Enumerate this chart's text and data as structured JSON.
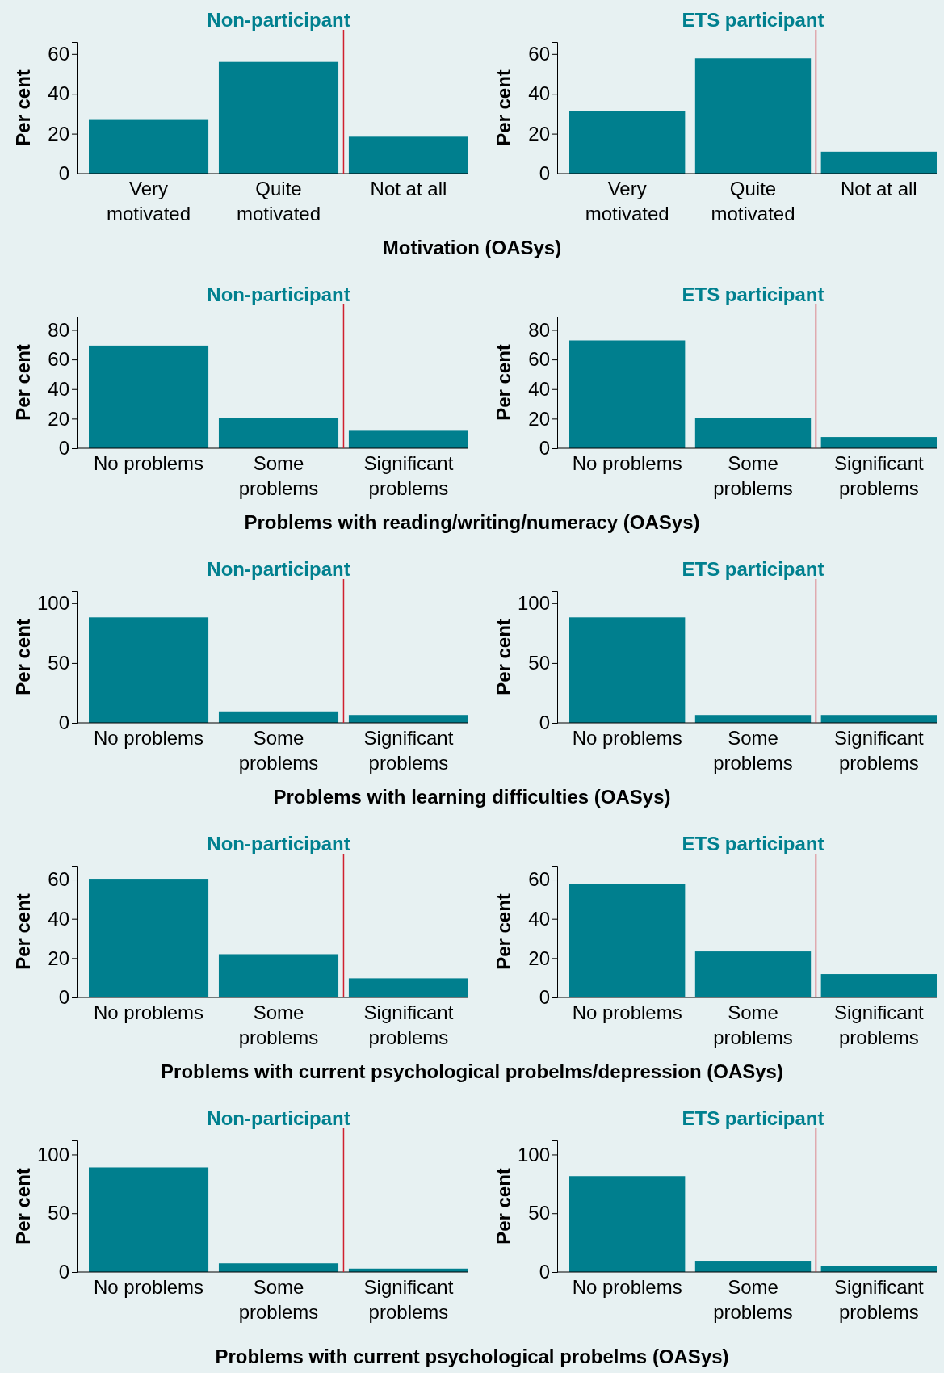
{
  "chart_data": [
    {
      "type": "bar",
      "title": "Non-participant",
      "ylabel": "Per cent",
      "xlabel": "Motivation (OASys)",
      "categories": [
        "Very motivated",
        "Quite motivated",
        "Not at all"
      ],
      "values": [
        27.3,
        56,
        18.5
      ],
      "color": "#007f8e",
      "ylim": [
        0,
        66
      ],
      "yticks": [
        0,
        20,
        40,
        60
      ],
      "ref_lines": [
        {
          "axis": "x",
          "value": "Not at all",
          "color": "#d0202e"
        }
      ]
    },
    {
      "type": "bar",
      "title": "ETS participant",
      "ylabel": "Per cent",
      "categories": [
        "Very motivated",
        "Quite motivated",
        "Not at all"
      ],
      "values": [
        31.3,
        57.8,
        11
      ],
      "color": "#007f8e",
      "ylim": [
        0,
        66
      ],
      "yticks": [
        0,
        20,
        40,
        60
      ],
      "ref_lines": [
        {
          "axis": "x",
          "value": "Not at all",
          "color": "#d0202e"
        }
      ]
    },
    {
      "type": "bar",
      "title": "Non-participant",
      "ylabel": "Per cent",
      "xlabel": "Problems with reading/writing/numeracy (OASys)",
      "categories": [
        "No problems",
        "Some problems",
        "Significant problems"
      ],
      "values": [
        69.4,
        20.6,
        11.8
      ],
      "color": "#007f8e",
      "ylim": [
        0,
        89
      ],
      "yticks": [
        0,
        20,
        40,
        60,
        80
      ],
      "ref_lines": [
        {
          "axis": "x",
          "value": "Significant problems",
          "color": "#d0202e"
        }
      ]
    },
    {
      "type": "bar",
      "title": "ETS participant",
      "ylabel": "Per cent",
      "categories": [
        "No problems",
        "Some problems",
        "Significant problems"
      ],
      "values": [
        72.9,
        20.6,
        7.6
      ],
      "color": "#007f8e",
      "ylim": [
        0,
        89
      ],
      "yticks": [
        0,
        20,
        40,
        60,
        80
      ],
      "ref_lines": [
        {
          "axis": "x",
          "value": "Significant problems",
          "color": "#d0202e"
        }
      ]
    },
    {
      "type": "bar",
      "title": "Non-participant",
      "ylabel": "Per cent",
      "xlabel": "Problems with learning difficulties (OASys)",
      "categories": [
        "No problems",
        "Some problems",
        "Significant problems"
      ],
      "values": [
        88.2,
        9.6,
        6.6
      ],
      "color": "#007f8e",
      "ylim": [
        0,
        110
      ],
      "yticks": [
        0,
        50,
        100
      ],
      "ref_lines": [
        {
          "axis": "x",
          "value": "Significant problems",
          "color": "#d0202e"
        }
      ]
    },
    {
      "type": "bar",
      "title": "ETS participant",
      "ylabel": "Per cent",
      "categories": [
        "No problems",
        "Some problems",
        "Significant problems"
      ],
      "values": [
        88.2,
        6.6,
        6.6
      ],
      "color": "#007f8e",
      "ylim": [
        0,
        110
      ],
      "yticks": [
        0,
        50,
        100
      ],
      "ref_lines": [
        {
          "axis": "x",
          "value": "Significant problems",
          "color": "#d0202e"
        }
      ]
    },
    {
      "type": "bar",
      "title": "Non-participant",
      "ylabel": "Per cent",
      "xlabel": "Problems with current psychological probelms/depression (OASys)",
      "categories": [
        "No problems",
        "Some problems",
        "Significant problems"
      ],
      "values": [
        60.4,
        22,
        9.7
      ],
      "color": "#007f8e",
      "ylim": [
        0,
        67
      ],
      "yticks": [
        0,
        20,
        40,
        60
      ],
      "ref_lines": [
        {
          "axis": "x",
          "value": "Significant problems",
          "color": "#d0202e"
        }
      ]
    },
    {
      "type": "bar",
      "title": "ETS participant",
      "ylabel": "Per cent",
      "categories": [
        "No problems",
        "Some problems",
        "Significant problems"
      ],
      "values": [
        57.8,
        23.4,
        11.9
      ],
      "color": "#007f8e",
      "ylim": [
        0,
        67
      ],
      "yticks": [
        0,
        20,
        40,
        60
      ],
      "ref_lines": [
        {
          "axis": "x",
          "value": "Significant problems",
          "color": "#d0202e"
        }
      ]
    },
    {
      "type": "bar",
      "title": "Non-participant",
      "ylabel": "Per cent",
      "xlabel": "Problems with current psychological probelms (OASys)",
      "categories": [
        "No problems",
        "Some problems",
        "Significant problems"
      ],
      "values": [
        89,
        7.4,
        2.9
      ],
      "color": "#007f8e",
      "ylim": [
        0,
        112
      ],
      "yticks": [
        0,
        50,
        100
      ],
      "ref_lines": [
        {
          "axis": "x",
          "value": "Significant problems",
          "color": "#d0202e"
        }
      ]
    },
    {
      "type": "bar",
      "title": "ETS participant",
      "ylabel": "Per cent",
      "categories": [
        "No problems",
        "Some problems",
        "Significant problems"
      ],
      "values": [
        81.6,
        9.6,
        5.1
      ],
      "color": "#007f8e",
      "ylim": [
        0,
        112
      ],
      "yticks": [
        0,
        50,
        100
      ],
      "ref_lines": [
        {
          "axis": "x",
          "value": "Significant problems",
          "color": "#d0202e"
        }
      ]
    }
  ]
}
